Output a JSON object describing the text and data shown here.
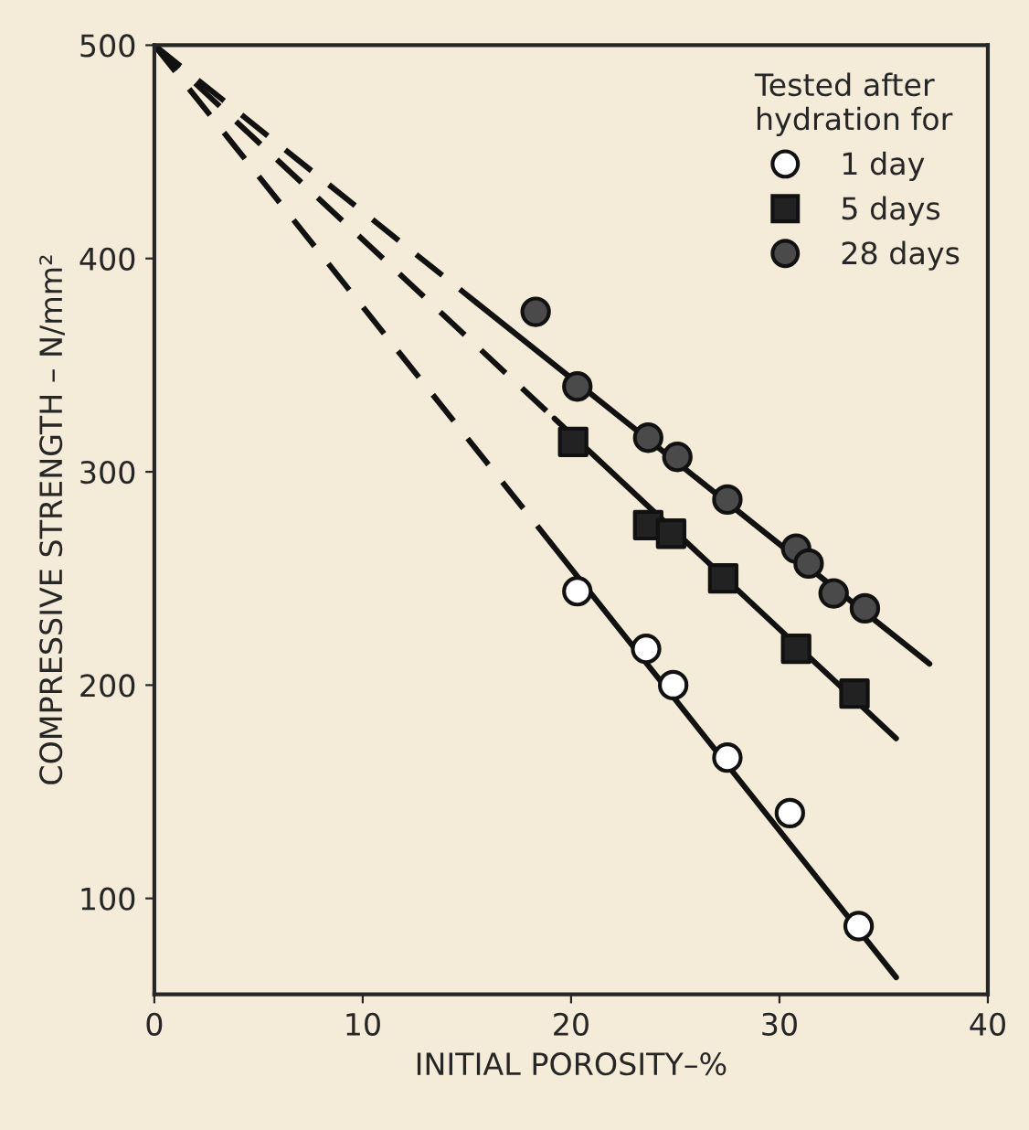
{
  "chart_data": {
    "type": "scatter",
    "xlabel": "INITIAL POROSITY–%",
    "ylabel": "COMPRESSIVE STRENGTH – N/mm²",
    "legend_title": "Tested after\nhydration for",
    "legend": "top right",
    "grid": false,
    "xlim": [
      0,
      40
    ],
    "ylim": [
      55,
      500
    ],
    "xticks": [
      0,
      10,
      20,
      30,
      40
    ],
    "yticks": [
      100,
      200,
      300,
      400,
      500
    ],
    "series": [
      {
        "name": "1 day",
        "marker": "circle",
        "color": "#ffffff",
        "x": [
          20.3,
          23.6,
          24.9,
          27.5,
          30.5,
          33.8
        ],
        "values": [
          244,
          217,
          200,
          166,
          140,
          87
        ]
      },
      {
        "name": "5 days",
        "marker": "square",
        "color": "#222222",
        "x": [
          20.1,
          23.7,
          24.8,
          27.3,
          30.8,
          33.6
        ],
        "values": [
          314,
          275,
          271,
          250,
          217,
          196
        ]
      },
      {
        "name": "28 days",
        "marker": "circle",
        "color": "#4a4a4a",
        "x": [
          18.3,
          20.3,
          23.7,
          25.1,
          27.5,
          30.8,
          31.4,
          32.6,
          34.1
        ],
        "values": [
          375,
          340,
          316,
          307,
          287,
          264,
          257,
          243,
          236
        ]
      },
      {
        "type": "line",
        "line_style": "dashed",
        "color": "#111111",
        "x": [
          0,
          19
        ],
        "values": [
          500,
          267
        ]
      },
      {
        "type": "line",
        "line_style": "solid",
        "color": "#111111",
        "x": [
          19,
          35.6
        ],
        "values": [
          267,
          63
        ]
      },
      {
        "type": "line",
        "line_style": "dashed",
        "color": "#111111",
        "x": [
          0,
          19.2
        ],
        "values": [
          500,
          325
        ]
      },
      {
        "type": "line",
        "line_style": "solid",
        "color": "#111111",
        "x": [
          19.2,
          35.6
        ],
        "values": [
          325,
          175
        ]
      },
      {
        "type": "line",
        "line_style": "dashed",
        "color": "#111111",
        "x": [
          0,
          15.5
        ],
        "values": [
          500,
          379
        ]
      },
      {
        "type": "line",
        "line_style": "solid",
        "color": "#111111",
        "x": [
          15.5,
          37.2
        ],
        "values": [
          379,
          210
        ]
      }
    ]
  }
}
